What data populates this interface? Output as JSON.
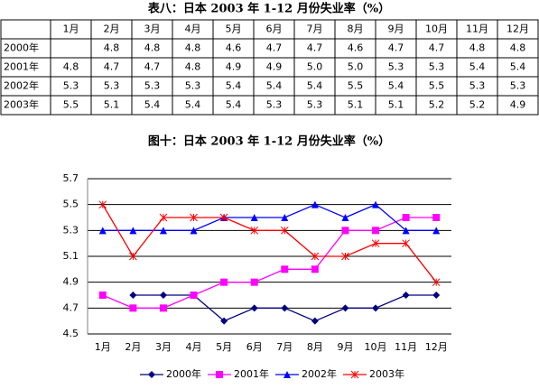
{
  "table": {
    "title": "表八：日本 2003 年 1-12 月份失业率（%）",
    "header": [
      "1月",
      "2月",
      "3月",
      "4月",
      "5月",
      "6月",
      "7月",
      "8月",
      "9月",
      "10月",
      "11月",
      "12月"
    ],
    "rows": [
      {
        "label": "2000年",
        "values": [
          null,
          "4.8",
          "4.8",
          "4.8",
          "4.6",
          "4.7",
          "4.7",
          "4.6",
          "4.7",
          "4.7",
          "4.8",
          "4.8"
        ]
      },
      {
        "label": "2001年",
        "values": [
          "4.8",
          "4.7",
          "4.7",
          "4.8",
          "4.9",
          "4.9",
          "5.0",
          "5.0",
          "5.3",
          "5.3",
          "5.4",
          "5.4"
        ]
      },
      {
        "label": "2002年",
        "values": [
          "5.3",
          "5.3",
          "5.3",
          "5.3",
          "5.4",
          "5.4",
          "5.4",
          "5.5",
          "5.4",
          "5.5",
          "5.3",
          "5.3"
        ]
      },
      {
        "label": "2003年",
        "values": [
          "5.5",
          "5.1",
          "5.4",
          "5.4",
          "5.4",
          "5.3",
          "5.3",
          "5.1",
          "5.1",
          "5.2",
          "5.2",
          "4.9"
        ]
      }
    ]
  },
  "chart_data": {
    "type": "line",
    "title": "图十：日本 2003 年 1-12 月份失业率（%）",
    "categories": [
      "1月",
      "2月",
      "3月",
      "4月",
      "5月",
      "6月",
      "7月",
      "8月",
      "9月",
      "10月",
      "11月",
      "12月"
    ],
    "series": [
      {
        "name": "2000年",
        "color": "#000080",
        "marker": "diamond",
        "values": [
          null,
          4.8,
          4.8,
          4.8,
          4.6,
          4.7,
          4.7,
          4.6,
          4.7,
          4.7,
          4.8,
          4.8
        ]
      },
      {
        "name": "2001年",
        "color": "#ff00ff",
        "marker": "square",
        "values": [
          4.8,
          4.7,
          4.7,
          4.8,
          4.9,
          4.9,
          5.0,
          5.0,
          5.3,
          5.3,
          5.4,
          5.4
        ]
      },
      {
        "name": "2002年",
        "color": "#0000ff",
        "marker": "triangle",
        "values": [
          5.3,
          5.3,
          5.3,
          5.3,
          5.4,
          5.4,
          5.4,
          5.5,
          5.4,
          5.5,
          5.3,
          5.3
        ]
      },
      {
        "name": "2003年",
        "color": "#ff0000",
        "marker": "star",
        "values": [
          5.5,
          5.1,
          5.4,
          5.4,
          5.4,
          5.3,
          5.3,
          5.1,
          5.1,
          5.2,
          5.2,
          4.9
        ]
      }
    ],
    "ylim": [
      4.5,
      5.7
    ],
    "yticks": [
      4.5,
      4.7,
      4.9,
      5.1,
      5.3,
      5.5,
      5.7
    ],
    "grid": true,
    "legend": "bottom"
  }
}
